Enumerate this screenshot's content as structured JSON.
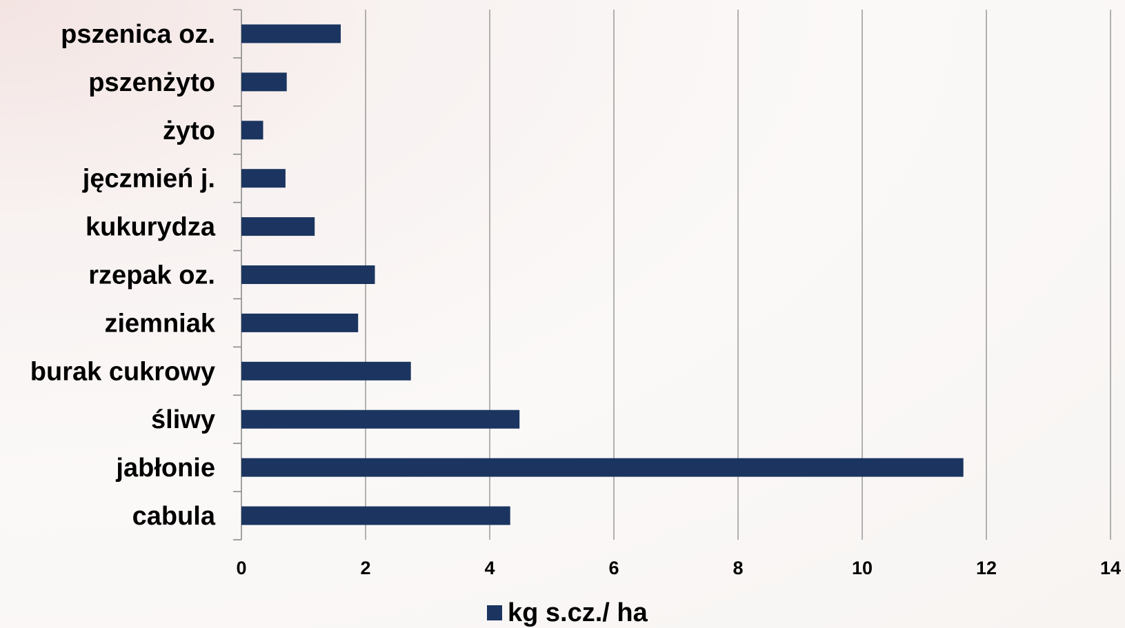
{
  "chart_data": {
    "type": "bar",
    "orientation": "horizontal",
    "categories": [
      "pszenica oz.",
      "pszenżyto",
      "żyto",
      "jęczmień j.",
      "kukurydza",
      "rzepak oz.",
      "ziemniak",
      "burak cukrowy",
      "śliwy",
      "jabłonie",
      "cabula"
    ],
    "series": [
      {
        "name": "kg s.cz./ ha",
        "color": "#1b3560",
        "values": [
          1.6,
          0.73,
          0.35,
          0.71,
          1.18,
          2.15,
          1.88,
          2.73,
          4.48,
          11.63,
          4.33
        ]
      }
    ],
    "xlim": [
      0,
      14
    ],
    "x_ticks": [
      0,
      2,
      4,
      6,
      8,
      10,
      12,
      14
    ],
    "grid": "vertical",
    "legend_position": "bottom",
    "title": "",
    "xlabel": "",
    "ylabel": ""
  }
}
